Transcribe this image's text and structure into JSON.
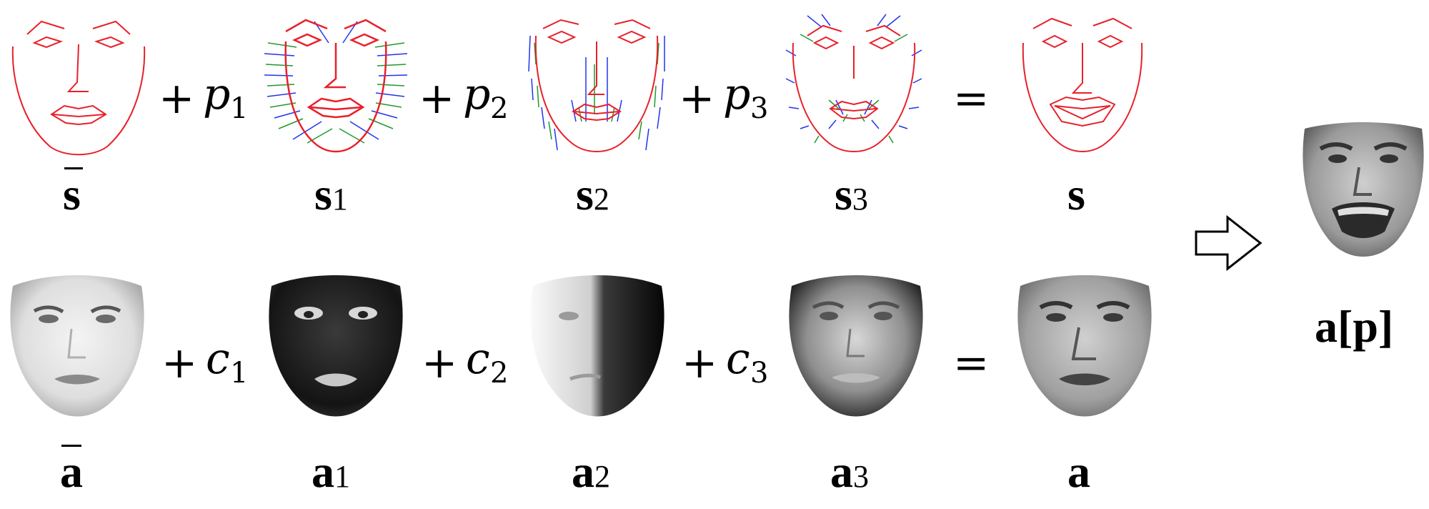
{
  "shape_row": {
    "items": [
      {
        "id": "s-mean",
        "label": "s",
        "subscript": "",
        "bar": true
      },
      {
        "id": "s1",
        "label": "s",
        "subscript": "1",
        "bar": false
      },
      {
        "id": "s2",
        "label": "s",
        "subscript": "2",
        "bar": false
      },
      {
        "id": "s3",
        "label": "s",
        "subscript": "3",
        "bar": false
      },
      {
        "id": "s-result",
        "label": "s",
        "subscript": "",
        "bar": false
      }
    ],
    "operators": [
      {
        "plus": "+",
        "var": "p",
        "subscript": "1"
      },
      {
        "plus": "+",
        "var": "p",
        "subscript": "2"
      },
      {
        "plus": "+",
        "var": "p",
        "subscript": "3"
      },
      {
        "plus": "=",
        "var": "",
        "subscript": ""
      }
    ]
  },
  "appearance_row": {
    "items": [
      {
        "id": "a-mean",
        "label": "a",
        "subscript": "",
        "bar": true
      },
      {
        "id": "a1",
        "label": "a",
        "subscript": "1",
        "bar": false
      },
      {
        "id": "a2",
        "label": "a",
        "subscript": "2",
        "bar": false
      },
      {
        "id": "a3",
        "label": "a",
        "subscript": "3",
        "bar": false
      },
      {
        "id": "a-result",
        "label": "a",
        "subscript": "",
        "bar": false
      }
    ],
    "operators": [
      {
        "plus": "+",
        "var": "c",
        "subscript": "1"
      },
      {
        "plus": "+",
        "var": "c",
        "subscript": "2"
      },
      {
        "plus": "+",
        "var": "c",
        "subscript": "3"
      },
      {
        "plus": "=",
        "var": "",
        "subscript": ""
      }
    ]
  },
  "output": {
    "label": "a[p]"
  },
  "colors": {
    "mesh_outline": "#e8202a",
    "mesh_vector_blue": "#2233ee",
    "mesh_vector_green": "#1f9a2a",
    "text": "#000000"
  },
  "icons": [
    "right-arrow-icon"
  ]
}
